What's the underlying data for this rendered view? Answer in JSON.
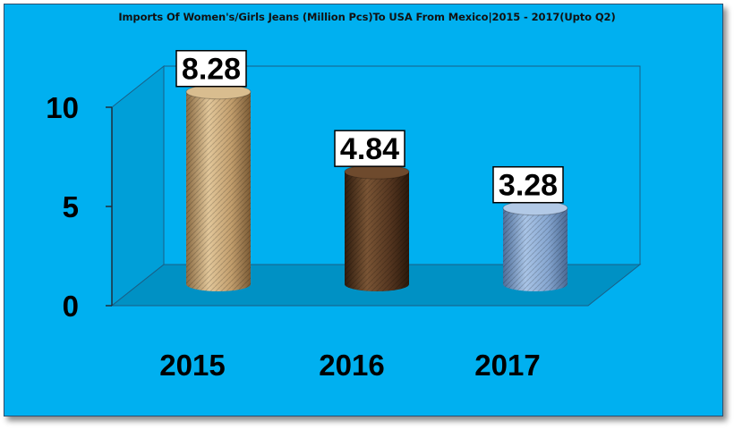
{
  "chart_data": {
    "type": "bar",
    "title": "Imports Of Women's/Girls Jeans (Million Pcs)To USA From Mexico|2015 - 2017(Upto Q2)",
    "categories": [
      "2015",
      "2016",
      "2017"
    ],
    "values": [
      8.28,
      4.84,
      3.28
    ],
    "value_labels": [
      "8.28",
      "4.84",
      "3.28"
    ],
    "ylim": [
      0,
      10
    ],
    "yticks": [
      0,
      5,
      10
    ],
    "ytick_labels": [
      "0",
      "5",
      "10"
    ],
    "grid": false,
    "legend": "none"
  },
  "colors": {
    "background": "#00b0f0",
    "wall": "#00b0f0",
    "floor": "#0091c4",
    "bar_2015": "#c8a679",
    "bar_2016": "#5a3a22",
    "bar_2017": "#8fb0d8"
  }
}
